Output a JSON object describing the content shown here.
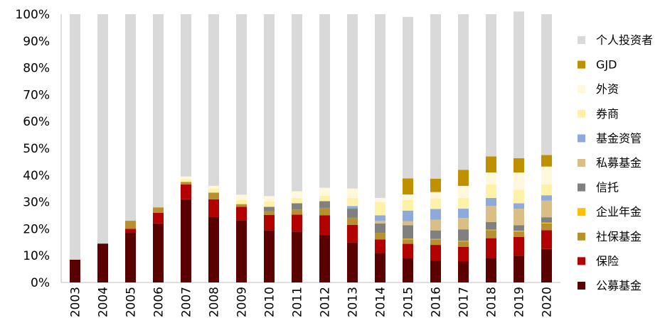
{
  "chart_data": {
    "type": "bar",
    "stacked": true,
    "title": "",
    "xlabel": "",
    "ylabel": "",
    "ylim": [
      0,
      100
    ],
    "y_ticks": [
      "0%",
      "10%",
      "20%",
      "30%",
      "40%",
      "50%",
      "60%",
      "70%",
      "80%",
      "90%",
      "100%"
    ],
    "grid": false,
    "legend_position": "right",
    "categories": [
      "2003",
      "2004",
      "2005",
      "2006",
      "2007",
      "2008",
      "2009",
      "2010",
      "2011",
      "2012",
      "2013",
      "2014",
      "2015",
      "2016",
      "2017",
      "2018",
      "2019",
      "2020"
    ],
    "series": [
      {
        "name": "公募基金",
        "color": "#5a0000",
        "values": [
          8.5,
          14.5,
          18.5,
          22,
          31,
          24.5,
          23.2,
          19.5,
          19,
          17.7,
          15,
          11,
          9,
          8.2,
          7.8,
          9,
          10,
          12.5
        ]
      },
      {
        "name": "保险",
        "color": "#b30000",
        "values": [
          0,
          0,
          1.5,
          4,
          5.5,
          6.5,
          5,
          5.7,
          6.3,
          7.3,
          6.5,
          5,
          5.4,
          5.8,
          5.5,
          7.5,
          7,
          7
        ]
      },
      {
        "name": "社保基金",
        "color": "#b8912e",
        "values": [
          0,
          0,
          3,
          2,
          1,
          2.5,
          1,
          1.4,
          1.9,
          2.8,
          2.6,
          2.5,
          1.6,
          2,
          2,
          3,
          2,
          2.5
        ]
      },
      {
        "name": "企业年金",
        "color": "#ffc000",
        "values": [
          0,
          0,
          0,
          0,
          0,
          0,
          0,
          0,
          0,
          0,
          0,
          0,
          0.3,
          0.2,
          0.2,
          0.2,
          0.3,
          0.3
        ]
      },
      {
        "name": "信托",
        "color": "#808080",
        "values": [
          0,
          0,
          0,
          0,
          0,
          0,
          0,
          1.6,
          2.3,
          2.5,
          3.4,
          3.5,
          5,
          3.2,
          4.3,
          2.8,
          2,
          2
        ]
      },
      {
        "name": "私募基金",
        "color": "#d9bf86",
        "values": [
          0,
          0,
          0,
          0,
          0,
          0,
          0,
          0,
          0,
          0,
          0,
          1,
          1.5,
          4,
          4.2,
          6,
          6.2,
          6.2
        ]
      },
      {
        "name": "基金资管",
        "color": "#8eaadb",
        "values": [
          0,
          0,
          0,
          0,
          0,
          0,
          0,
          0,
          0,
          0,
          1,
          2,
          4,
          4,
          3.5,
          3,
          2,
          2
        ]
      },
      {
        "name": "券商",
        "color": "#fff2a8",
        "values": [
          0,
          0,
          0,
          0,
          1,
          1.5,
          1.5,
          2,
          2,
          2,
          3,
          5,
          4,
          4,
          4,
          5,
          5,
          4
        ]
      },
      {
        "name": "外资",
        "color": "#fff8dc",
        "values": [
          0,
          0,
          0,
          0,
          1,
          1,
          2,
          2,
          2.5,
          3,
          3.5,
          1.5,
          2,
          2.3,
          4.5,
          4.5,
          6.5,
          6.7
        ]
      },
      {
        "name": "GJD",
        "color": "#bf9000",
        "values": [
          0,
          0,
          0,
          0,
          0,
          0,
          0,
          0,
          0,
          0,
          0,
          0,
          6,
          5,
          6,
          6,
          5.3,
          4.3
        ]
      },
      {
        "name": "个人投资者",
        "color": "#d9d9d9",
        "values": [
          91.5,
          85.5,
          77,
          72,
          60.5,
          64,
          67.3,
          67.8,
          66,
          64.7,
          65,
          68.5,
          60.2,
          61.3,
          58,
          53,
          54.7,
          52.5
        ]
      }
    ],
    "legend_order": [
      "个人投资者",
      "GJD",
      "外资",
      "券商",
      "基金资管",
      "私募基金",
      "信托",
      "企业年金",
      "社保基金",
      "保险",
      "公募基金"
    ]
  }
}
